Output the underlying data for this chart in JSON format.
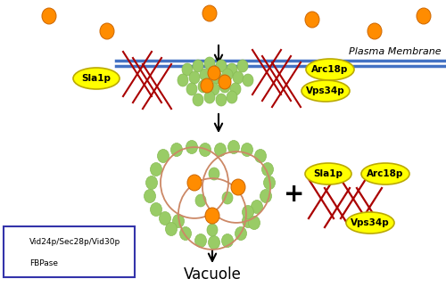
{
  "bg_color": "#ffffff",
  "membrane_color": "#4472c4",
  "green_color": "#99cc66",
  "green_edge": "#88bb55",
  "orange_color": "#ff8c00",
  "orange_edge": "#cc6600",
  "dark_red": "#aa0000",
  "yellow_fill": "#ffff00",
  "yellow_edge": "#bbaa00",
  "vacuole_edge": "#cc8866",
  "plasma_membrane_label": "Plasma Membrane",
  "vacuole_label": "Vacuole",
  "legend_green_label": "Vid24p/Sec28p/Vid30p",
  "legend_orange_label": "FBPase",
  "legend_edge_color": "#3333aa"
}
